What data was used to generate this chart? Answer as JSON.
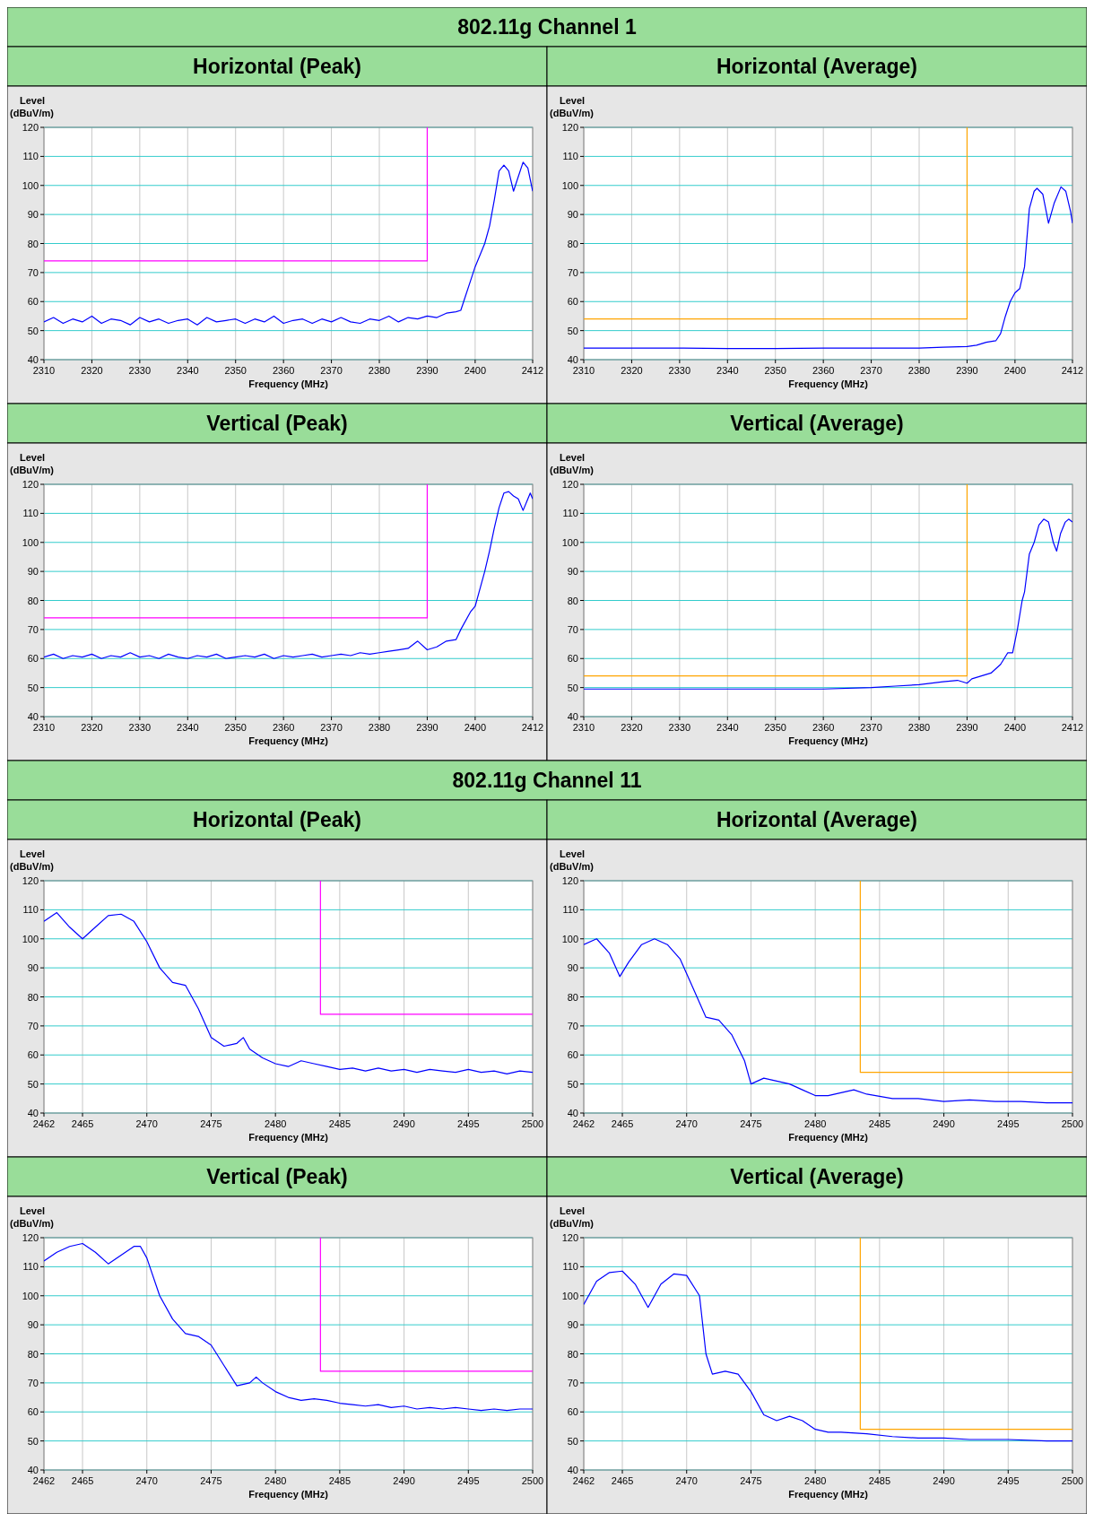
{
  "chart_data": [
    {
      "type": "line",
      "title": "Horizontal (Peak)",
      "annotations": [
        "802.11g Channel 1"
      ],
      "xlabel": "Frequency (MHz)",
      "ylabel": "Level\n(dBuV/m)",
      "xlim": [
        2310,
        2412
      ],
      "xticks": [
        2310,
        2320,
        2330,
        2340,
        2350,
        2360,
        2370,
        2380,
        2390,
        2400,
        2412
      ],
      "ylim": [
        40,
        120
      ],
      "yticks": [
        40,
        50,
        60,
        70,
        80,
        90,
        100,
        110,
        120
      ],
      "grid": true,
      "series": [
        {
          "color": "#0000ff",
          "x": [
            2310,
            2312,
            2314,
            2316,
            2318,
            2320,
            2322,
            2324,
            2326,
            2328,
            2330,
            2332,
            2334,
            2336,
            2338,
            2340,
            2342,
            2344,
            2346,
            2348,
            2350,
            2352,
            2354,
            2356,
            2358,
            2360,
            2362,
            2364,
            2366,
            2368,
            2370,
            2372,
            2374,
            2376,
            2378,
            2380,
            2382,
            2384,
            2386,
            2388,
            2390,
            2392,
            2394,
            2396,
            2397,
            2398,
            2399,
            2400,
            2401,
            2402,
            2403,
            2404,
            2405,
            2406,
            2407,
            2408,
            2409,
            2410,
            2411,
            2412
          ],
          "values": [
            53,
            54.5,
            52.5,
            54,
            53,
            55,
            52.5,
            54,
            53.5,
            52,
            54.5,
            53,
            54,
            52.5,
            53.5,
            54,
            52,
            54.5,
            53,
            53.5,
            54,
            52.5,
            54,
            53,
            55,
            52.5,
            53.5,
            54,
            52.5,
            54,
            53,
            54.5,
            53,
            52.5,
            54,
            53.5,
            55,
            53,
            54.5,
            54,
            55,
            54.5,
            56,
            56.5,
            57,
            62,
            67,
            72,
            76,
            80,
            86,
            95,
            105,
            107,
            105,
            98,
            103,
            108,
            106,
            98
          ]
        },
        {
          "color": "#ff00ff",
          "x": [
            2310,
            2390,
            2390
          ],
          "values": [
            74,
            74,
            120
          ]
        }
      ]
    },
    {
      "type": "line",
      "title": "Horizontal (Average)",
      "xlabel": "Frequency (MHz)",
      "ylabel": "Level\n(dBuV/m)",
      "xlim": [
        2310,
        2412
      ],
      "xticks": [
        2310,
        2320,
        2330,
        2340,
        2350,
        2360,
        2370,
        2380,
        2390,
        2400,
        2412
      ],
      "ylim": [
        40,
        120
      ],
      "yticks": [
        40,
        50,
        60,
        70,
        80,
        90,
        100,
        110,
        120
      ],
      "grid": true,
      "series": [
        {
          "color": "#0000ff",
          "x": [
            2310,
            2320,
            2330,
            2340,
            2350,
            2360,
            2370,
            2380,
            2385,
            2390,
            2392,
            2394,
            2396,
            2397,
            2398,
            2399,
            2400,
            2401,
            2402,
            2403,
            2404,
            2404.6,
            2405.8,
            2407,
            2408.2,
            2409.6,
            2410.6,
            2411.6,
            2412
          ],
          "values": [
            44,
            44,
            44,
            43.8,
            43.8,
            44,
            44,
            44,
            44.3,
            44.5,
            45,
            46,
            46.5,
            49,
            55,
            60,
            63,
            64.5,
            72,
            92,
            98,
            99,
            97,
            87,
            94,
            99.5,
            98,
            91,
            87
          ]
        },
        {
          "color": "#ffa500",
          "x": [
            2310,
            2390,
            2390
          ],
          "values": [
            54,
            54,
            120
          ]
        }
      ]
    },
    {
      "type": "line",
      "title": "Vertical (Peak)",
      "xlabel": "Frequency (MHz)",
      "ylabel": "Level\n(dBuV/m)",
      "xlim": [
        2310,
        2412
      ],
      "xticks": [
        2310,
        2320,
        2330,
        2340,
        2350,
        2360,
        2370,
        2380,
        2390,
        2400,
        2412
      ],
      "ylim": [
        40,
        120
      ],
      "yticks": [
        40,
        50,
        60,
        70,
        80,
        90,
        100,
        110,
        120
      ],
      "grid": true,
      "series": [
        {
          "color": "#0000ff",
          "x": [
            2310,
            2312,
            2314,
            2316,
            2318,
            2320,
            2322,
            2324,
            2326,
            2328,
            2330,
            2332,
            2334,
            2336,
            2338,
            2340,
            2342,
            2344,
            2346,
            2348,
            2350,
            2352,
            2354,
            2356,
            2358,
            2360,
            2362,
            2364,
            2366,
            2368,
            2370,
            2372,
            2374,
            2376,
            2378,
            2380,
            2382,
            2384,
            2386,
            2388,
            2390,
            2392,
            2394,
            2396,
            2397,
            2399,
            2400,
            2401,
            2402,
            2403,
            2404,
            2405,
            2406,
            2407,
            2408,
            2409,
            2410,
            2411,
            2411.5,
            2412
          ],
          "values": [
            60.5,
            61.5,
            60,
            61,
            60.5,
            61.5,
            60,
            61,
            60.5,
            62,
            60.5,
            61,
            60,
            61.5,
            60.5,
            60,
            61,
            60.5,
            61.5,
            60,
            60.5,
            61,
            60.5,
            61.5,
            60,
            61,
            60.5,
            61,
            61.5,
            60.5,
            61,
            61.5,
            61,
            62,
            61.5,
            62,
            62.5,
            63,
            63.5,
            66,
            63,
            64,
            66,
            66.5,
            70,
            76,
            78,
            84,
            90,
            97,
            105,
            112,
            117,
            117.5,
            116,
            115,
            111,
            115,
            117,
            115
          ]
        },
        {
          "color": "#ff00ff",
          "x": [
            2310,
            2390,
            2390
          ],
          "values": [
            74,
            74,
            120
          ]
        }
      ]
    },
    {
      "type": "line",
      "title": "Vertical (Average)",
      "xlabel": "Frequency (MHz)",
      "ylabel": "Level\n(dBuV/m)",
      "xlim": [
        2310,
        2412
      ],
      "xticks": [
        2310,
        2320,
        2330,
        2340,
        2350,
        2360,
        2370,
        2380,
        2390,
        2400,
        2412
      ],
      "ylim": [
        40,
        120
      ],
      "yticks": [
        40,
        50,
        60,
        70,
        80,
        90,
        100,
        110,
        120
      ],
      "grid": true,
      "series": [
        {
          "color": "#0000ff",
          "x": [
            2310,
            2320,
            2330,
            2340,
            2350,
            2360,
            2370,
            2375,
            2380,
            2385,
            2388,
            2390,
            2391,
            2393,
            2395,
            2397,
            2398.5,
            2399.5,
            2400.5,
            2401.5,
            2402,
            2403,
            2404,
            2405,
            2406,
            2407,
            2408,
            2408.7,
            2409.5,
            2410.5,
            2411.2,
            2412
          ],
          "values": [
            49.5,
            49.5,
            49.5,
            49.5,
            49.5,
            49.5,
            50,
            50.5,
            51,
            52,
            52.5,
            51.5,
            53,
            54,
            55,
            58,
            62,
            62,
            70,
            80,
            83,
            96,
            100,
            106,
            108,
            107,
            100,
            97,
            103,
            107,
            108,
            107
          ]
        },
        {
          "color": "#ffa500",
          "x": [
            2310,
            2390,
            2390
          ],
          "values": [
            54,
            54,
            120
          ]
        }
      ]
    },
    {
      "type": "line",
      "title": "Horizontal (Peak)",
      "annotations": [
        "802.11g Channel 11"
      ],
      "xlabel": "Frequency (MHz)",
      "ylabel": "Level\n(dBuV/m)",
      "xlim": [
        2462,
        2500
      ],
      "xticks": [
        2462,
        2465,
        2470,
        2475,
        2480,
        2485,
        2490,
        2495,
        2500
      ],
      "ylim": [
        40,
        120
      ],
      "yticks": [
        40,
        50,
        60,
        70,
        80,
        90,
        100,
        110,
        120
      ],
      "grid": true,
      "series": [
        {
          "color": "#0000ff",
          "x": [
            2462,
            2463,
            2464,
            2465,
            2466,
            2467,
            2468,
            2469,
            2470,
            2471,
            2472,
            2473,
            2474,
            2475,
            2476,
            2477,
            2477.5,
            2478,
            2479,
            2480,
            2481,
            2482,
            2483,
            2484,
            2485,
            2486,
            2487,
            2488,
            2489,
            2490,
            2491,
            2492,
            2493,
            2494,
            2495,
            2496,
            2497,
            2498,
            2499,
            2500
          ],
          "values": [
            106,
            109,
            104,
            100,
            104,
            108,
            108.5,
            106,
            99,
            90,
            85,
            84,
            76,
            66,
            63,
            64,
            66,
            62,
            59,
            57,
            56,
            58,
            57,
            56,
            55,
            55.5,
            54.5,
            55.5,
            54.5,
            55,
            54,
            55,
            54.5,
            54,
            55,
            54,
            54.5,
            53.5,
            54.5,
            54
          ]
        },
        {
          "color": "#ff00ff",
          "x": [
            2483.5,
            2483.5,
            2500
          ],
          "values": [
            120,
            74,
            74
          ]
        }
      ]
    },
    {
      "type": "line",
      "title": "Horizontal (Average)",
      "xlabel": "Frequency (MHz)",
      "ylabel": "Level\n(dBuV/m)",
      "xlim": [
        2462,
        2500
      ],
      "xticks": [
        2462,
        2465,
        2470,
        2475,
        2480,
        2485,
        2490,
        2495,
        2500
      ],
      "ylim": [
        40,
        120
      ],
      "yticks": [
        40,
        50,
        60,
        70,
        80,
        90,
        100,
        110,
        120
      ],
      "grid": true,
      "series": [
        {
          "color": "#0000ff",
          "x": [
            2462,
            2463,
            2464,
            2464.8,
            2465.5,
            2466.5,
            2467.5,
            2468.5,
            2469.5,
            2470.5,
            2471.5,
            2472.5,
            2473.5,
            2474.5,
            2475,
            2476,
            2477,
            2478,
            2479,
            2480,
            2481,
            2482,
            2483,
            2484,
            2486,
            2488,
            2490,
            2492,
            2494,
            2496,
            2498,
            2500
          ],
          "values": [
            98,
            100,
            95,
            87,
            92,
            98,
            100,
            98,
            93,
            83,
            73,
            72,
            67,
            58,
            50,
            52,
            51,
            50,
            48,
            46,
            46,
            47,
            48,
            46.5,
            45,
            45,
            44,
            44.5,
            44,
            44,
            43.5,
            43.5
          ]
        },
        {
          "color": "#ffa500",
          "x": [
            2483.5,
            2483.5,
            2500
          ],
          "values": [
            120,
            54,
            54
          ]
        }
      ]
    },
    {
      "type": "line",
      "title": "Vertical (Peak)",
      "xlabel": "Frequency (MHz)",
      "ylabel": "Level\n(dBuV/m)",
      "xlim": [
        2462,
        2500
      ],
      "xticks": [
        2462,
        2465,
        2470,
        2475,
        2480,
        2485,
        2490,
        2495,
        2500
      ],
      "ylim": [
        40,
        120
      ],
      "yticks": [
        40,
        50,
        60,
        70,
        80,
        90,
        100,
        110,
        120
      ],
      "grid": true,
      "series": [
        {
          "color": "#0000ff",
          "x": [
            2462,
            2463,
            2464,
            2465,
            2466,
            2467,
            2468,
            2469,
            2469.5,
            2470,
            2471,
            2472,
            2473,
            2474,
            2475,
            2476,
            2477,
            2478,
            2478.5,
            2479,
            2480,
            2481,
            2482,
            2483,
            2484,
            2485,
            2486,
            2487,
            2488,
            2489,
            2490,
            2491,
            2492,
            2493,
            2494,
            2495,
            2496,
            2497,
            2498,
            2499,
            2500
          ],
          "values": [
            112,
            115,
            117,
            118,
            115,
            111,
            114,
            117,
            117,
            113,
            100,
            92,
            87,
            86,
            83,
            76,
            69,
            70,
            72,
            70,
            67,
            65,
            64,
            64.5,
            64,
            63,
            62.5,
            62,
            62.5,
            61.5,
            62,
            61,
            61.5,
            61,
            61.5,
            61,
            60.5,
            61,
            60.5,
            61,
            61
          ]
        },
        {
          "color": "#ff00ff",
          "x": [
            2483.5,
            2483.5,
            2500
          ],
          "values": [
            120,
            74,
            74
          ]
        }
      ]
    },
    {
      "type": "line",
      "title": "Vertical (Average)",
      "xlabel": "Frequency (MHz)",
      "ylabel": "Level\n(dBuV/m)",
      "xlim": [
        2462,
        2500
      ],
      "xticks": [
        2462,
        2465,
        2470,
        2475,
        2480,
        2485,
        2490,
        2495,
        2500
      ],
      "ylim": [
        40,
        120
      ],
      "yticks": [
        40,
        50,
        60,
        70,
        80,
        90,
        100,
        110,
        120
      ],
      "grid": true,
      "series": [
        {
          "color": "#0000ff",
          "x": [
            2462,
            2463,
            2464,
            2465,
            2466,
            2467,
            2468,
            2469,
            2470,
            2471,
            2471.5,
            2472,
            2473,
            2474,
            2475,
            2476,
            2477,
            2478,
            2479,
            2480,
            2481,
            2482,
            2484,
            2486,
            2488,
            2490,
            2492,
            2495,
            2498,
            2500
          ],
          "values": [
            97,
            105,
            108,
            108.5,
            104,
            96,
            104,
            107.5,
            107,
            100,
            80,
            73,
            74,
            73,
            67,
            59,
            57,
            58.5,
            57,
            54,
            53,
            53,
            52.5,
            51.5,
            51,
            51,
            50.5,
            50.5,
            50,
            50
          ]
        },
        {
          "color": "#ffa500",
          "x": [
            2483.5,
            2483.5,
            2500
          ],
          "values": [
            120,
            54,
            54
          ]
        }
      ]
    }
  ]
}
